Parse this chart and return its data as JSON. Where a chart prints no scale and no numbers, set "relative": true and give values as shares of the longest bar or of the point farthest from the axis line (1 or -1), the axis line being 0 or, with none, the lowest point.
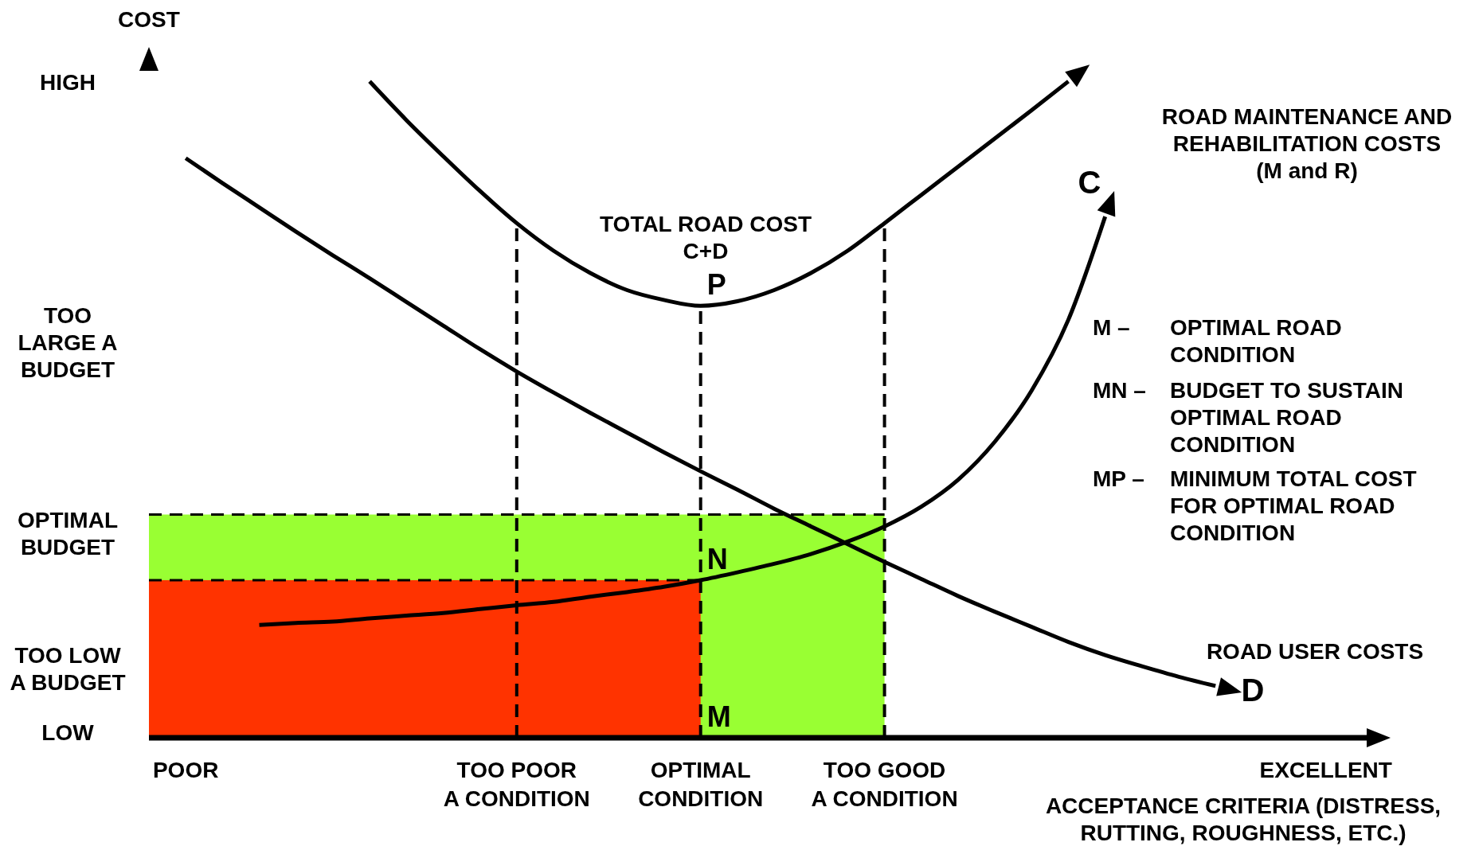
{
  "chart_data": {
    "type": "line",
    "relative": true,
    "ylabel": "COST",
    "xlabel": "ACCEPTANCE CRITERIA (DISTRESS,\nRUTTING, ROUGHNESS, ETC.)",
    "categories": [
      null,
      "POOR",
      null,
      null,
      null,
      null,
      null,
      null,
      null,
      null,
      "TOO POOR\nA CONDITION",
      null,
      null,
      null,
      null,
      "OPTIMAL\nCONDITION",
      null,
      null,
      null,
      null,
      "TOO GOOD\nA CONDITION",
      null,
      null,
      null,
      null,
      null,
      null,
      null,
      null,
      null,
      null,
      null,
      "EXCELLENT",
      null
    ],
    "series": [
      {
        "type": "area",
        "color": "#99ff33",
        "line_style": "dashed",
        "values": [
          0.34,
          0.34,
          0.34,
          0.34,
          0.34,
          0.34,
          0.34,
          0.34,
          0.34,
          0.34,
          0.34,
          0.34,
          0.34,
          0.34,
          0.34,
          0.34,
          0.34,
          0.34,
          0.34,
          0.34,
          0.34,
          null,
          null,
          null,
          null,
          null,
          null,
          null,
          null,
          null,
          null,
          null,
          null,
          null
        ]
      },
      {
        "type": "area",
        "color": "#ff3300",
        "line_style": "dashed",
        "values": [
          0.24,
          0.24,
          0.24,
          0.24,
          0.24,
          0.24,
          0.24,
          0.24,
          0.24,
          0.24,
          0.24,
          0.24,
          0.24,
          0.24,
          0.24,
          0.24,
          null,
          null,
          null,
          null,
          null,
          null,
          null,
          null,
          null,
          null,
          null,
          null,
          null,
          null,
          null,
          null,
          null,
          null
        ]
      },
      {
        "name": "TOTAL ROAD COST\nC+D",
        "color": "#000000",
        "values": [
          null,
          null,
          null,
          null,
          null,
          null,
          1.0,
          0.941,
          0.886,
          0.833,
          0.784,
          0.742,
          0.708,
          0.682,
          0.667,
          0.658,
          0.665,
          0.682,
          0.708,
          0.742,
          0.784,
          0.827,
          0.87,
          0.913,
          0.956,
          1.0,
          null,
          null,
          null,
          null,
          null,
          null,
          null,
          null
        ]
      },
      {
        "name": "ROAD MAINTENANCE AND\nREHABILITATION COSTS\n(M and R)",
        "color": "#000000",
        "values": [
          null,
          null,
          null,
          0.172,
          0.175,
          0.177,
          0.182,
          0.186,
          0.19,
          0.196,
          0.202,
          0.207,
          0.215,
          0.222,
          0.23,
          0.24,
          0.252,
          0.265,
          0.28,
          0.299,
          0.322,
          0.352,
          0.393,
          0.451,
          0.529,
          0.637,
          0.794,
          null,
          null,
          null,
          null,
          null,
          null,
          null
        ]
      },
      {
        "name": "ROAD USER COSTS",
        "color": "#000000",
        "values": [
          null,
          0.883,
          0.845,
          0.808,
          0.771,
          0.735,
          0.7,
          0.664,
          0.628,
          0.592,
          0.558,
          0.526,
          0.495,
          0.465,
          0.435,
          0.406,
          0.378,
          0.349,
          0.322,
          0.295,
          0.268,
          0.242,
          0.216,
          0.192,
          0.169,
          0.146,
          0.126,
          0.109,
          0.093,
          0.079,
          null,
          null,
          null,
          null
        ]
      }
    ],
    "ref_lines": [
      {
        "axis": "x",
        "value": "TOO POOR\nA CONDITION",
        "line_style": "dashed"
      },
      {
        "axis": "x",
        "value": "OPTIMAL\nCONDITION",
        "line_style": "dashed"
      },
      {
        "axis": "x",
        "value": "TOO GOOD\nA CONDITION",
        "line_style": "dashed"
      }
    ],
    "annotations": [
      "HIGH",
      "TOO\nLARGE A\nBUDGET",
      "OPTIMAL\nBUDGET",
      "TOO LOW\nA BUDGET",
      "LOW",
      {
        "text": "P",
        "x": "OPTIMAL\nCONDITION",
        "y": 0.658
      },
      {
        "text": "N",
        "x": "OPTIMAL\nCONDITION",
        "y": 0.24
      },
      {
        "text": "M",
        "x": "OPTIMAL\nCONDITION",
        "y": 0
      },
      "C",
      "D",
      "M –\nOPTIMAL ROAD\nCONDITION",
      "MN –\nBUDGET TO SUSTAIN\nOPTIMAL ROAD\nCONDITION",
      "MP –\nMINIMUM TOTAL COST\nFOR OPTIMAL ROAD\nCONDITION"
    ]
  }
}
